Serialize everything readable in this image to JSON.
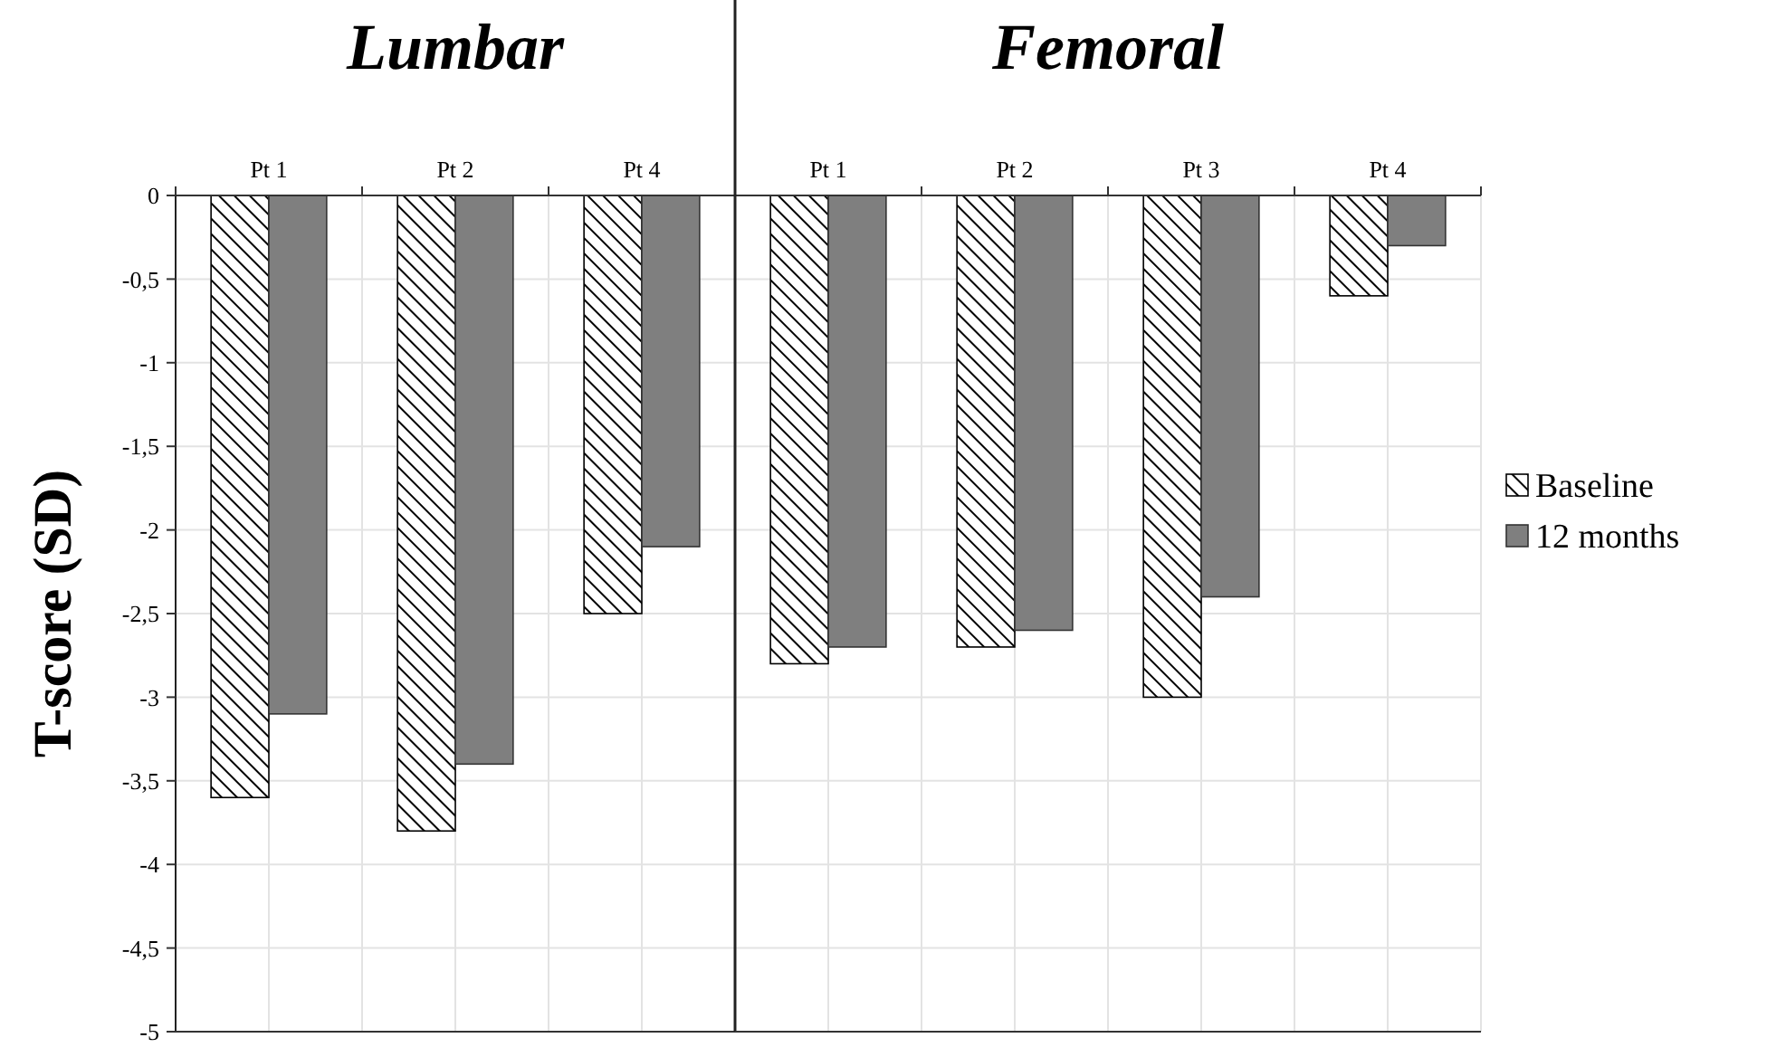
{
  "chart_data": [
    {
      "type": "bar",
      "title": "Lumbar",
      "ylabel": "T-score (SD)",
      "categories": [
        "Pt 1",
        "Pt 2",
        "Pt 4"
      ],
      "series": [
        {
          "color": "#000000",
          "values": [
            -3.6,
            -3.8,
            -2.5
          ]
        },
        {
          "color": "#7f7f7f",
          "values": [
            -3.1,
            -3.4,
            -2.1
          ]
        }
      ],
      "ylim": [
        -5,
        0
      ],
      "yticks": [
        0,
        {
          "value": -0.5,
          "label": "-0,5"
        },
        -1,
        {
          "value": -1.5,
          "label": "-1,5"
        },
        -2,
        {
          "value": -2.5,
          "label": "-2,5"
        },
        -3,
        {
          "value": -3.5,
          "label": "-3,5"
        },
        -4,
        {
          "value": -4.5,
          "label": "-4,5"
        },
        -5
      ],
      "grid": true,
      "legend": false
    },
    {
      "type": "bar",
      "title": "Femoral",
      "categories": [
        "Pt 1",
        "Pt 2",
        "Pt 3",
        "Pt 4"
      ],
      "series": [
        {
          "name": "Baseline",
          "color": "#000000",
          "values": [
            -2.8,
            -2.7,
            -3.0,
            -0.6
          ]
        },
        {
          "name": "12 months",
          "color": "#7f7f7f",
          "values": [
            -2.7,
            -2.6,
            -2.4,
            -0.3
          ]
        }
      ],
      "ylim": [
        -5,
        0
      ],
      "grid": true,
      "legend": "right",
      "tick_labels": "x"
    }
  ]
}
